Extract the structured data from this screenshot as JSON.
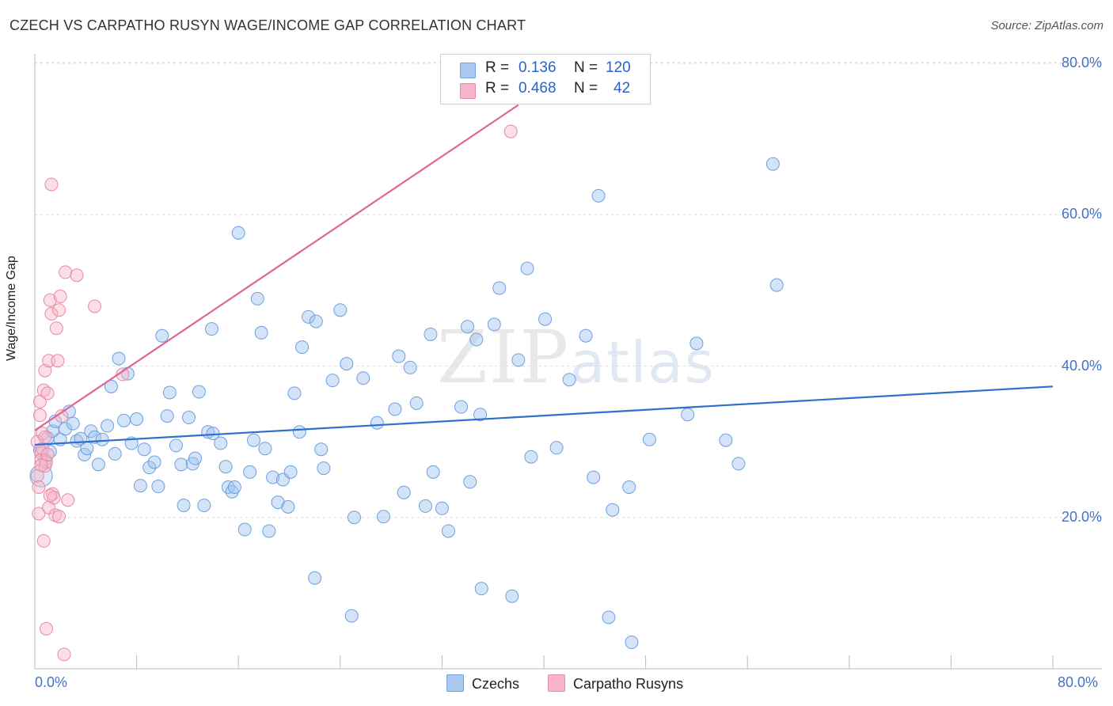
{
  "header": {
    "title": "CZECH VS CARPATHO RUSYN WAGE/INCOME GAP CORRELATION CHART",
    "source": "Source: ZipAtlas.com"
  },
  "watermark": {
    "zip": "ZIP",
    "atlas": "atlas"
  },
  "legend": {
    "rows": [
      {
        "r_label": "R =",
        "r_value": "0.136",
        "n_label": "N =",
        "n_value": "120",
        "color": "#aac8f0"
      },
      {
        "r_label": "R =",
        "r_value": "0.468",
        "n_label": "N =",
        "n_value": "42",
        "color": "#f7b6c8"
      }
    ],
    "bottom": [
      "Czechs",
      "Carpatho Rusyns"
    ]
  },
  "colors": {
    "czech_fill": "rgba(160,195,240,0.45)",
    "czech_stroke": "#6f9fdc",
    "czech_line": "#2f6fcc",
    "rusyn_fill": "rgba(247,182,200,0.45)",
    "rusyn_stroke": "#e78aa6",
    "rusyn_line": "#e06690",
    "tick_text": "#4472c4"
  },
  "chart_data": {
    "type": "scatter",
    "title": "CZECH VS CARPATHO RUSYN WAGE/INCOME GAP CORRELATION CHART",
    "xlabel": "",
    "ylabel": "Wage/Income Gap",
    "xlim": [
      0,
      80
    ],
    "ylim": [
      0,
      80
    ],
    "x_tick_labels": [
      "0.0%",
      "80.0%"
    ],
    "y_ticks": [
      20,
      40,
      60,
      80
    ],
    "y_tick_labels": [
      "20.0%",
      "40.0%",
      "60.0%",
      "80.0%"
    ],
    "grid": true,
    "series": [
      {
        "name": "Czechs",
        "r": 0.136,
        "n": 120,
        "trend": [
          [
            0,
            29.6
          ],
          [
            80,
            37.3
          ]
        ],
        "points": [
          [
            0.4,
            28.9
          ],
          [
            0.8,
            27.6
          ],
          [
            1.0,
            30.5
          ],
          [
            1.2,
            28.7
          ],
          [
            1.4,
            31.4
          ],
          [
            1.6,
            32.7
          ],
          [
            2.0,
            30.3
          ],
          [
            2.4,
            31.7
          ],
          [
            2.7,
            34.0
          ],
          [
            3.0,
            32.4
          ],
          [
            3.3,
            30.1
          ],
          [
            3.6,
            30.4
          ],
          [
            3.9,
            28.3
          ],
          [
            4.1,
            29.1
          ],
          [
            4.4,
            31.4
          ],
          [
            4.7,
            30.6
          ],
          [
            5.0,
            27.0
          ],
          [
            5.3,
            30.3
          ],
          [
            5.7,
            32.1
          ],
          [
            6.0,
            37.3
          ],
          [
            6.3,
            28.4
          ],
          [
            6.6,
            41.0
          ],
          [
            7.0,
            32.8
          ],
          [
            7.3,
            39.0
          ],
          [
            7.6,
            29.8
          ],
          [
            8.0,
            33.0
          ],
          [
            8.3,
            24.2
          ],
          [
            8.6,
            29.0
          ],
          [
            9.0,
            26.6
          ],
          [
            9.4,
            27.3
          ],
          [
            9.7,
            24.1
          ],
          [
            10.0,
            44.0
          ],
          [
            10.4,
            33.4
          ],
          [
            10.6,
            36.5
          ],
          [
            11.1,
            29.5
          ],
          [
            11.5,
            27.0
          ],
          [
            11.7,
            21.6
          ],
          [
            12.1,
            33.2
          ],
          [
            12.4,
            27.1
          ],
          [
            12.6,
            27.8
          ],
          [
            12.9,
            36.6
          ],
          [
            13.3,
            21.6
          ],
          [
            13.6,
            31.3
          ],
          [
            13.9,
            44.9
          ],
          [
            14.0,
            31.1
          ],
          [
            14.6,
            29.8
          ],
          [
            15.0,
            26.7
          ],
          [
            15.2,
            24.0
          ],
          [
            15.5,
            23.4
          ],
          [
            15.7,
            24.0
          ],
          [
            16.0,
            57.6
          ],
          [
            16.5,
            18.4
          ],
          [
            16.9,
            26.0
          ],
          [
            17.2,
            30.2
          ],
          [
            17.5,
            48.9
          ],
          [
            17.8,
            44.4
          ],
          [
            18.1,
            29.1
          ],
          [
            18.4,
            18.2
          ],
          [
            18.7,
            25.3
          ],
          [
            19.1,
            22.0
          ],
          [
            19.5,
            25.0
          ],
          [
            19.9,
            21.4
          ],
          [
            20.1,
            26.0
          ],
          [
            20.4,
            36.4
          ],
          [
            20.8,
            31.3
          ],
          [
            21.0,
            42.5
          ],
          [
            21.5,
            46.5
          ],
          [
            22.0,
            12.0
          ],
          [
            22.1,
            45.9
          ],
          [
            22.5,
            29.0
          ],
          [
            22.7,
            26.5
          ],
          [
            23.4,
            38.1
          ],
          [
            24.0,
            47.4
          ],
          [
            24.5,
            40.3
          ],
          [
            24.9,
            7.0
          ],
          [
            25.1,
            20.0
          ],
          [
            25.8,
            38.4
          ],
          [
            26.9,
            32.5
          ],
          [
            27.4,
            20.1
          ],
          [
            28.3,
            34.3
          ],
          [
            28.6,
            41.3
          ],
          [
            29.0,
            23.3
          ],
          [
            29.5,
            39.8
          ],
          [
            30.0,
            35.1
          ],
          [
            30.7,
            21.5
          ],
          [
            31.1,
            44.2
          ],
          [
            31.3,
            26.0
          ],
          [
            32.0,
            21.2
          ],
          [
            32.5,
            18.2
          ],
          [
            33.5,
            34.6
          ],
          [
            34.0,
            45.2
          ],
          [
            34.2,
            24.7
          ],
          [
            34.7,
            43.5
          ],
          [
            35.0,
            33.6
          ],
          [
            35.1,
            10.6
          ],
          [
            36.1,
            45.5
          ],
          [
            36.5,
            50.3
          ],
          [
            37.5,
            9.6
          ],
          [
            38.0,
            40.8
          ],
          [
            38.7,
            52.9
          ],
          [
            39.0,
            28.0
          ],
          [
            40.1,
            46.2
          ],
          [
            41.0,
            29.2
          ],
          [
            42.0,
            38.2
          ],
          [
            43.3,
            44.0
          ],
          [
            43.9,
            25.3
          ],
          [
            44.3,
            62.5
          ],
          [
            45.1,
            6.8
          ],
          [
            45.4,
            21.0
          ],
          [
            46.7,
            24.0
          ],
          [
            46.9,
            3.5
          ],
          [
            48.3,
            30.3
          ],
          [
            51.3,
            33.6
          ],
          [
            52.0,
            43.0
          ],
          [
            54.3,
            30.2
          ],
          [
            55.3,
            27.1
          ],
          [
            58.0,
            66.7
          ],
          [
            58.3,
            50.7
          ]
        ]
      },
      {
        "name": "Carpatho Rusyns",
        "r": 0.468,
        "n": 42,
        "trend": [
          [
            0,
            31.5
          ],
          [
            38,
            74.5
          ]
        ],
        "points": [
          [
            0.2,
            30.0
          ],
          [
            0.2,
            25.5
          ],
          [
            0.3,
            24.0
          ],
          [
            0.3,
            20.5
          ],
          [
            0.4,
            35.3
          ],
          [
            0.4,
            33.5
          ],
          [
            0.5,
            28.5
          ],
          [
            0.5,
            27.6
          ],
          [
            0.6,
            31.1
          ],
          [
            0.6,
            29.1
          ],
          [
            0.7,
            16.9
          ],
          [
            0.7,
            36.8
          ],
          [
            0.8,
            39.4
          ],
          [
            0.8,
            26.8
          ],
          [
            0.9,
            27.3
          ],
          [
            1.0,
            36.4
          ],
          [
            1.0,
            28.3
          ],
          [
            1.1,
            40.7
          ],
          [
            1.1,
            21.3
          ],
          [
            1.2,
            48.7
          ],
          [
            1.3,
            64.0
          ],
          [
            1.3,
            46.9
          ],
          [
            1.4,
            23.1
          ],
          [
            1.5,
            22.6
          ],
          [
            1.6,
            20.3
          ],
          [
            1.7,
            45.0
          ],
          [
            1.8,
            40.7
          ],
          [
            1.9,
            47.4
          ],
          [
            2.0,
            49.2
          ],
          [
            2.1,
            33.4
          ],
          [
            2.4,
            52.4
          ],
          [
            3.3,
            52.0
          ],
          [
            4.7,
            47.9
          ],
          [
            6.9,
            38.9
          ],
          [
            37.4,
            71.0
          ],
          [
            0.9,
            5.3
          ],
          [
            2.3,
            1.9
          ],
          [
            0.5,
            26.9
          ],
          [
            0.8,
            30.6
          ],
          [
            1.2,
            22.9
          ],
          [
            1.9,
            20.1
          ],
          [
            2.6,
            22.3
          ]
        ]
      }
    ]
  }
}
